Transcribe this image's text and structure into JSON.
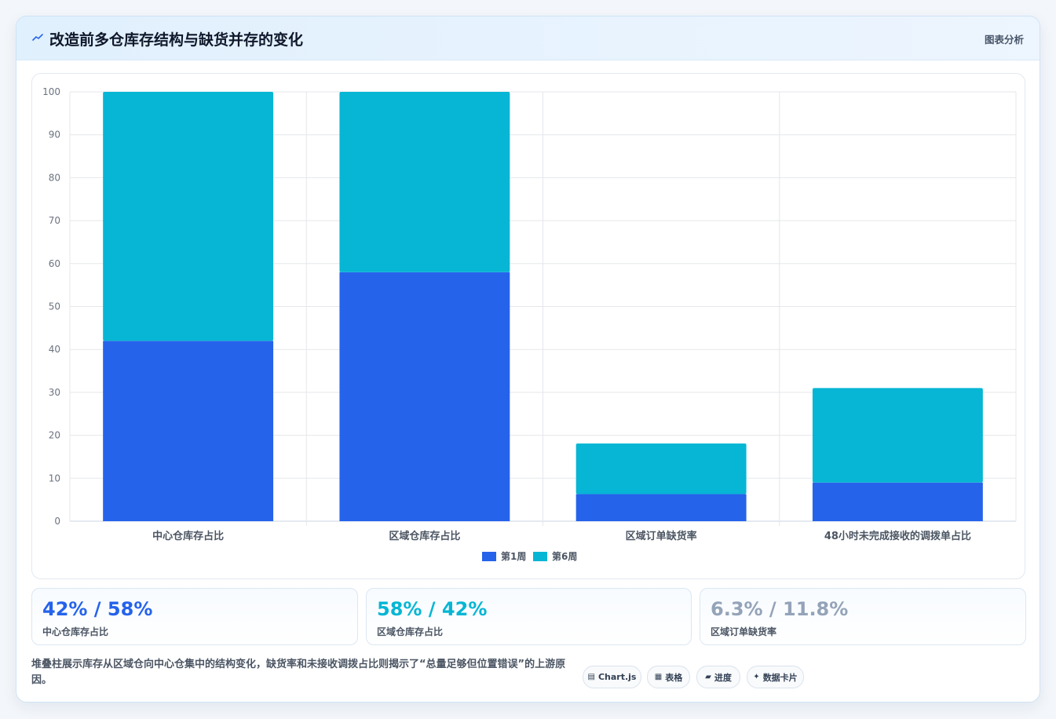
{
  "header": {
    "title": "改造前多仓库存结构与缺货并存的变化",
    "tag": "图表分析",
    "icon": "trend-line-icon"
  },
  "chart_data": {
    "type": "bar",
    "stacked": true,
    "categories": [
      "中心仓库存占比",
      "区域仓库存占比",
      "区域订单缺货率",
      "48小时未完成接收的调拨单占比"
    ],
    "series": [
      {
        "name": "第1周",
        "color": "#2563eb",
        "values": [
          42,
          58,
          6.3,
          9
        ]
      },
      {
        "name": "第6周",
        "color": "#06b6d4",
        "values": [
          58,
          42,
          11.8,
          22
        ]
      }
    ],
    "ylim": [
      0,
      100
    ],
    "yticks": [
      0,
      10,
      20,
      30,
      40,
      50,
      60,
      70,
      80,
      90,
      100
    ],
    "grid": true,
    "legend": "bottom"
  },
  "stats": [
    {
      "value": "42% / 58%",
      "label": "中心仓库存占比",
      "color": "#2563eb"
    },
    {
      "value": "58% / 42%",
      "label": "区域仓库存占比",
      "color": "#06b6d4"
    },
    {
      "value": "6.3% / 11.8%",
      "label": "区域订单缺货率",
      "color": "#94a3b8"
    }
  ],
  "footnote": "堆叠柱展示库存从区域仓向中心仓集中的结构变化，缺货率和未接收调拨占比则揭示了“总量足够但位置错误”的上游原因。",
  "chips": [
    {
      "label": "Chart.js",
      "icon": "chart-icon",
      "glyph": "▤"
    },
    {
      "label": "表格",
      "icon": "table-icon",
      "glyph": "▦"
    },
    {
      "label": "进度",
      "icon": "progress-icon",
      "glyph": "▰"
    },
    {
      "label": "数据卡片",
      "icon": "sparkle-icon",
      "glyph": "✦"
    }
  ]
}
